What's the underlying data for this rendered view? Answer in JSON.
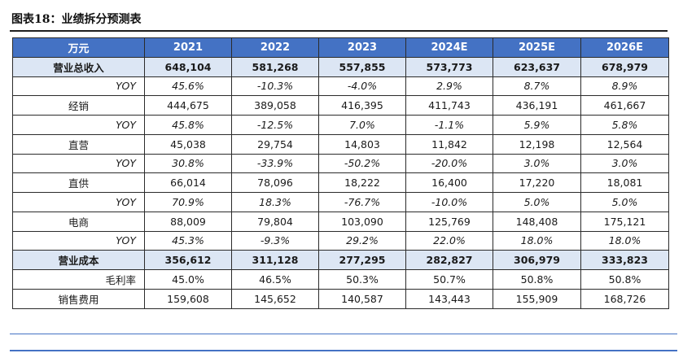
{
  "title": "图表18：业绩拆分预测表",
  "table": {
    "headers": [
      "万元",
      "2021",
      "2022",
      "2023",
      "2024E",
      "2025E",
      "2026E"
    ],
    "rows": [
      {
        "label": "营业总收入",
        "style": "bold",
        "values": [
          "648,104",
          "581,268",
          "557,855",
          "573,773",
          "623,637",
          "678,979"
        ]
      },
      {
        "label": "YOY",
        "style": "yoy",
        "values": [
          "45.6%",
          "-10.3%",
          "-4.0%",
          "2.9%",
          "8.7%",
          "8.9%"
        ]
      },
      {
        "label": "经销",
        "style": "normal",
        "values": [
          "444,675",
          "389,058",
          "416,395",
          "411,743",
          "436,191",
          "461,667"
        ]
      },
      {
        "label": "YOY",
        "style": "yoy",
        "values": [
          "45.8%",
          "-12.5%",
          "7.0%",
          "-1.1%",
          "5.9%",
          "5.8%"
        ]
      },
      {
        "label": "直营",
        "style": "normal",
        "values": [
          "45,038",
          "29,754",
          "14,803",
          "11,842",
          "12,198",
          "12,564"
        ]
      },
      {
        "label": "YOY",
        "style": "yoy",
        "values": [
          "30.8%",
          "-33.9%",
          "-50.2%",
          "-20.0%",
          "3.0%",
          "3.0%"
        ]
      },
      {
        "label": "直供",
        "style": "normal",
        "values": [
          "66,014",
          "78,096",
          "18,222",
          "16,400",
          "17,220",
          "18,081"
        ]
      },
      {
        "label": "YOY",
        "style": "yoy",
        "values": [
          "70.9%",
          "18.3%",
          "-76.7%",
          "-10.0%",
          "5.0%",
          "5.0%"
        ]
      },
      {
        "label": "电商",
        "style": "normal",
        "values": [
          "88,009",
          "79,804",
          "103,090",
          "125,769",
          "148,408",
          "175,121"
        ]
      },
      {
        "label": "YOY",
        "style": "yoy",
        "values": [
          "45.3%",
          "-9.3%",
          "29.2%",
          "22.0%",
          "18.0%",
          "18.0%"
        ]
      },
      {
        "label": "营业成本",
        "style": "bold",
        "values": [
          "356,612",
          "311,128",
          "277,295",
          "282,827",
          "306,979",
          "333,823"
        ]
      },
      {
        "label": "毛利率",
        "style": "right",
        "values": [
          "45.0%",
          "46.5%",
          "50.3%",
          "50.7%",
          "50.8%",
          "50.8%"
        ]
      },
      {
        "label": "销售费用",
        "style": "normal",
        "values": [
          "159,608",
          "145,652",
          "140,587",
          "143,443",
          "155,909",
          "168,726"
        ]
      }
    ]
  }
}
